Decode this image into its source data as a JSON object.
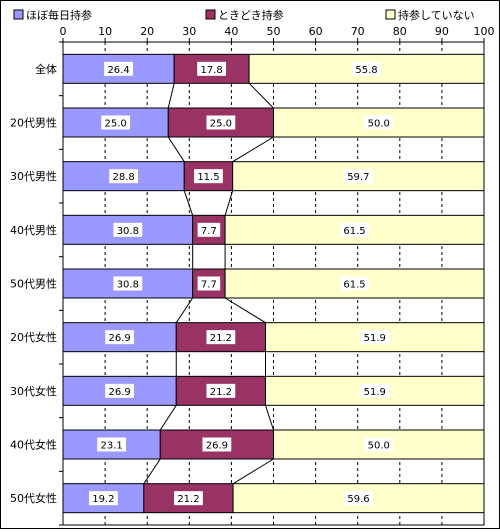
{
  "chart_data": {
    "type": "bar",
    "orientation": "horizontal",
    "stacked": "percent",
    "categories": [
      "全体",
      "20代男性",
      "30代男性",
      "40代男性",
      "50代男性",
      "20代女性",
      "30代女性",
      "40代女性",
      "50代女性"
    ],
    "series": [
      {
        "name": "ほぼ毎日持参",
        "color": "#9999ff",
        "values": [
          26.4,
          25.0,
          28.8,
          30.8,
          30.8,
          26.9,
          26.9,
          23.1,
          19.2
        ],
        "labels": [
          "26.4",
          "25.0",
          "28.8",
          "30.8",
          "30.8",
          "26.9",
          "26.9",
          "23.1",
          "19.2"
        ]
      },
      {
        "name": "ときどき持参",
        "color": "#993366",
        "values": [
          17.8,
          25.0,
          11.5,
          7.7,
          7.7,
          21.2,
          21.2,
          26.9,
          21.2
        ],
        "labels": [
          "17.8",
          "25.0",
          "11.5",
          "7.7",
          "7.7",
          "21.2",
          "21.2",
          "26.9",
          "21.2"
        ]
      },
      {
        "name": "持参していない",
        "color": "#ffffcc",
        "values": [
          55.8,
          50.0,
          59.7,
          61.5,
          61.5,
          51.9,
          51.9,
          50.0,
          59.6
        ],
        "labels": [
          "55.8",
          "50.0",
          "59.7",
          "61.5",
          "61.5",
          "51.9",
          "51.9",
          "50.0",
          "59.6"
        ]
      }
    ],
    "xlim": [
      0,
      100
    ],
    "xticks": [
      "0",
      "10",
      "20",
      "30",
      "40",
      "50",
      "60",
      "70",
      "80",
      "90",
      "100"
    ],
    "legend_position": "top",
    "grid": "vertical dashed",
    "series_lines": true
  }
}
